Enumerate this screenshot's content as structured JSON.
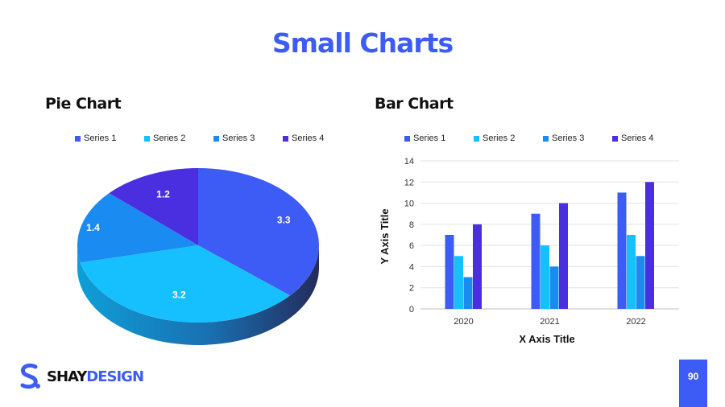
{
  "slide": {
    "title": "Small Charts",
    "page_number": "90"
  },
  "logo": {
    "part1": "SHAY",
    "part2": "DESIGN"
  },
  "colors": {
    "accent": "#3d5cf5",
    "series": [
      "#3d5cf5",
      "#16c0ff",
      "#1a8bf0",
      "#4a2fe0"
    ],
    "dark": "#232b5c"
  },
  "pie": {
    "heading": "Pie Chart",
    "legend": [
      "Series 1",
      "Series 2",
      "Series 3",
      "Series 4"
    ]
  },
  "bar": {
    "heading": "Bar Chart",
    "legend": [
      "Series 1",
      "Series 2",
      "Series 3",
      "Series 4"
    ]
  },
  "chart_data": [
    {
      "type": "pie",
      "title": "Pie Chart",
      "labels": [
        "Series 1",
        "Series 2",
        "Series 3",
        "Series 4"
      ],
      "values": [
        3.3,
        3.2,
        1.4,
        1.2
      ],
      "data_labels": [
        "3.3",
        "3.2",
        "1.4",
        "1.2"
      ],
      "legend_position": "top"
    },
    {
      "type": "bar",
      "title": "Bar Chart",
      "categories": [
        "2020",
        "2021",
        "2022"
      ],
      "series": [
        {
          "name": "Series 1",
          "values": [
            7,
            9,
            11
          ]
        },
        {
          "name": "Series 2",
          "values": [
            5,
            6,
            7
          ]
        },
        {
          "name": "Series 3",
          "values": [
            3,
            4,
            5
          ]
        },
        {
          "name": "Series 4",
          "values": [
            8,
            10,
            12
          ]
        }
      ],
      "xlabel": "X Axis Title",
      "ylabel": "Y Axis Title",
      "ylim": [
        0,
        14
      ],
      "yticks": [
        "0",
        "2",
        "4",
        "6",
        "8",
        "10",
        "12",
        "14"
      ],
      "grid": true,
      "legend_position": "top"
    }
  ]
}
